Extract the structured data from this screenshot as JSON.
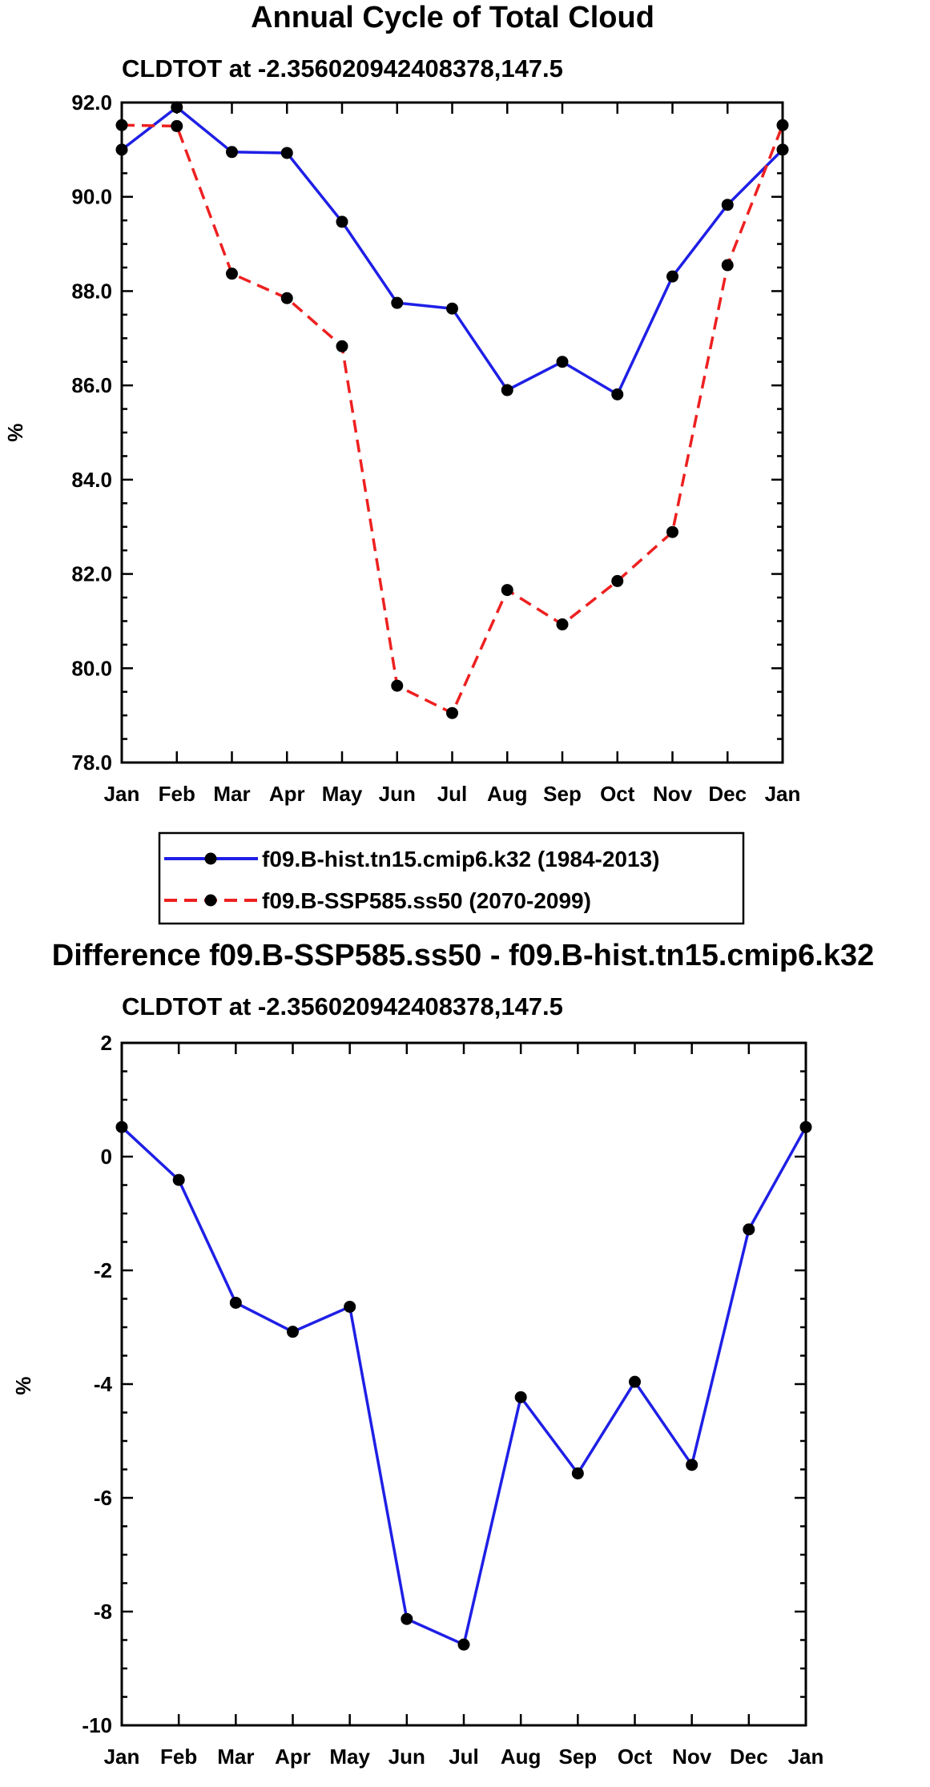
{
  "chart_data": [
    {
      "type": "line",
      "title": "Annual Cycle of Total Cloud",
      "subtitle": "CLDTOT at -2.356020942408378,147.5",
      "xlabel": "",
      "ylabel": "%",
      "ylim": [
        78.0,
        92.0
      ],
      "yticks": [
        78.0,
        80.0,
        82.0,
        84.0,
        86.0,
        88.0,
        90.0,
        92.0
      ],
      "ytick_labels": [
        "78.0",
        "80.0",
        "82.0",
        "84.0",
        "86.0",
        "88.0",
        "90.0",
        "92.0"
      ],
      "categories": [
        "Jan",
        "Feb",
        "Mar",
        "Apr",
        "May",
        "Jun",
        "Jul",
        "Aug",
        "Sep",
        "Oct",
        "Nov",
        "Dec",
        "Jan"
      ],
      "series": [
        {
          "name": "f09.B-hist.tn15.cmip6.k32 (1984-2013)",
          "color": "#1f1fe6",
          "dashed": false,
          "values": [
            91.0,
            91.9,
            90.95,
            90.93,
            89.47,
            87.75,
            87.63,
            85.9,
            86.5,
            85.81,
            88.31,
            89.83,
            91.0
          ]
        },
        {
          "name": "f09.B-SSP585.ss50 (2070-2099)",
          "color": "#ee2020",
          "dashed": true,
          "values": [
            91.52,
            91.5,
            88.37,
            87.85,
            86.83,
            79.63,
            79.05,
            81.66,
            80.93,
            81.85,
            82.89,
            88.55,
            91.52
          ]
        }
      ],
      "legend": "below"
    },
    {
      "type": "line",
      "title": "Difference f09.B-SSP585.ss50 - f09.B-hist.tn15.cmip6.k32",
      "subtitle": "CLDTOT at -2.356020942408378,147.5",
      "xlabel": "",
      "ylabel": "%",
      "ylim": [
        -10,
        2
      ],
      "yticks": [
        -10,
        -8,
        -6,
        -4,
        -2,
        0,
        2
      ],
      "ytick_labels": [
        "-10",
        "-8",
        "-6",
        "-4",
        "-2",
        "0",
        "2"
      ],
      "categories": [
        "Jan",
        "Feb",
        "Mar",
        "Apr",
        "May",
        "Jun",
        "Jul",
        "Aug",
        "Sep",
        "Oct",
        "Nov",
        "Dec",
        "Jan"
      ],
      "series": [
        {
          "name": "Difference",
          "color": "#1f1fe6",
          "dashed": false,
          "values": [
            0.52,
            -0.41,
            -2.57,
            -3.08,
            -2.64,
            -8.13,
            -8.58,
            -4.23,
            -5.57,
            -3.96,
            -5.42,
            -1.28,
            0.52
          ]
        }
      ]
    }
  ]
}
